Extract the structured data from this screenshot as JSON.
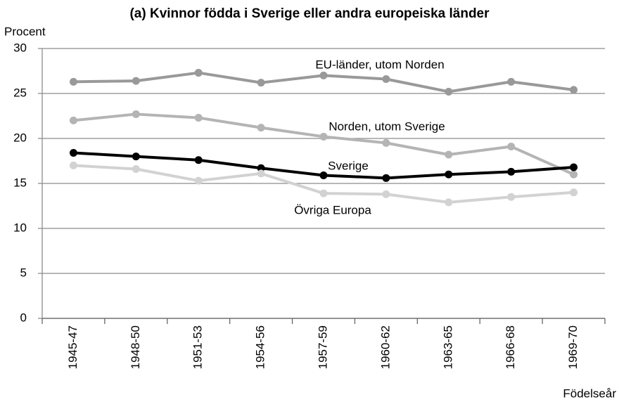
{
  "chart_data": {
    "type": "line",
    "title": "(a) Kvinnor födda i Sverige eller andra europeiska länder",
    "y_label": "Procent",
    "x_label": "Födelseår",
    "categories": [
      "1945-47",
      "1948-50",
      "1951-53",
      "1954-56",
      "1957-59",
      "1960-62",
      "1963-65",
      "1966-68",
      "1969-70"
    ],
    "series": [
      {
        "name": "EU-länder, utom Norden",
        "color": "#999999",
        "values": [
          26.3,
          26.4,
          27.3,
          26.2,
          27.0,
          26.6,
          25.2,
          26.3,
          25.4
        ]
      },
      {
        "name": "Norden, utom Sverige",
        "color": "#b4b4b4",
        "values": [
          22.0,
          22.7,
          22.3,
          21.2,
          20.2,
          19.5,
          18.2,
          19.1,
          16.0
        ]
      },
      {
        "name": "Sverige",
        "color": "#000000",
        "values": [
          18.4,
          18.0,
          17.6,
          16.7,
          15.9,
          15.6,
          16.0,
          16.3,
          16.8
        ]
      },
      {
        "name": "Övriga Europa",
        "color": "#d2d2d2",
        "values": [
          17.0,
          16.6,
          15.3,
          16.1,
          13.9,
          13.8,
          12.9,
          13.5,
          14.0
        ]
      }
    ],
    "ylim": [
      0,
      30
    ],
    "yticks": [
      0,
      5,
      10,
      15,
      20,
      25,
      30
    ],
    "grid": true
  }
}
